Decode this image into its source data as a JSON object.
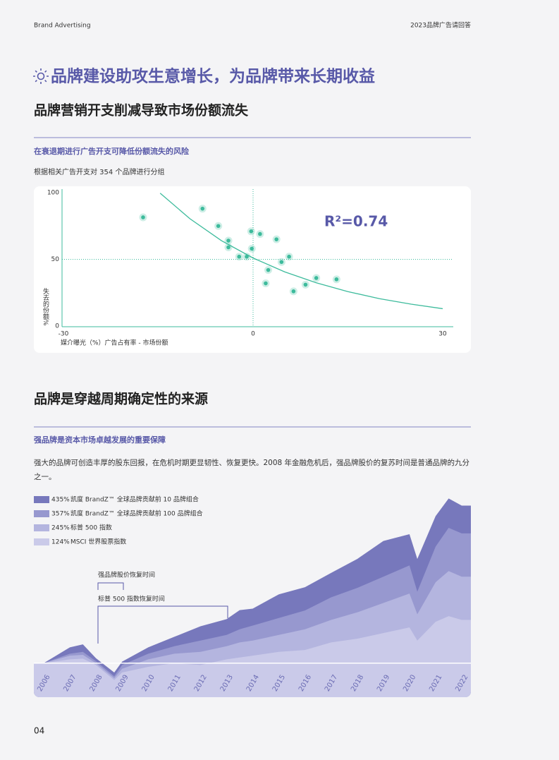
{
  "header": {
    "left": "Brand Advertising",
    "right": "2023品牌广告请回答"
  },
  "title": "品牌建设助攻生意增长，为品牌带来长期收益",
  "section1": {
    "heading": "品牌营销开支削减导致市场份额流失",
    "subheading": "在衰退期进行广告开支可降低份额流失的风险",
    "note": "根据相关广告开支对 354 个品牌进行分组"
  },
  "section2": {
    "heading": "品牌是穿越周期确定性的来源",
    "subheading": "强品牌是资本市场卓越发展的重要保障",
    "paragraph": "强大的品牌可创造丰厚的股东回报，在危机时期更显韧性、恢复更快。2008 年金融危机后，强品牌股价的复苏时间是普通品牌的九分之一。"
  },
  "page_number": "04",
  "chart_data": [
    {
      "type": "scatter",
      "x_label": "媒介曝光（%）广告占有率 - 市场份额",
      "y_label": "失去的份额%",
      "annotation": "R²=0.74",
      "color": "#3dbb9c",
      "x": [
        -17.4,
        -8,
        -5.5,
        -3.9,
        -3.9,
        -2.2,
        -1,
        -0.3,
        -0.2,
        1.1,
        2.4,
        2,
        3.7,
        4.5,
        5.7,
        6.4,
        8.3,
        10,
        13.2
      ],
      "values": [
        81.5,
        88,
        75,
        64,
        59,
        52,
        52,
        71,
        58,
        69,
        42,
        32,
        65,
        48,
        52,
        26,
        31,
        36,
        35
      ],
      "trend": {
        "x": [
          -14.7,
          -10,
          -5,
          0,
          5,
          10,
          15,
          20,
          25,
          30
        ],
        "values": [
          99.6,
          80.5,
          64,
          51,
          40.6,
          32.4,
          25.8,
          20.5,
          16.4,
          13
        ]
      },
      "xlim": [
        -30,
        30
      ],
      "xticks": [
        -30,
        0,
        30
      ],
      "ylim": [
        0,
        100
      ],
      "yticks": [
        0,
        50,
        100
      ]
    },
    {
      "type": "area",
      "annotations": [
        "强品牌股价恢复时间",
        "标普 500 指数恢复时间"
      ],
      "x": [
        2006,
        2007,
        2007.5,
        2008,
        2008.7,
        2009,
        2010,
        2011,
        2012,
        2013,
        2013.5,
        2014,
        2015,
        2016,
        2017,
        2018,
        2019,
        2020,
        2020.3,
        2021,
        2021.5,
        2022
      ],
      "series": [
        {
          "name": "凯度 BrandZ™ 全球品牌贡献前 10 品牌组合",
          "label": "435%",
          "color": "#7778bc",
          "values": [
            0,
            42,
            50,
            13,
            -25,
            4,
            42,
            70,
            98,
            117,
            141,
            145,
            183,
            202,
            240,
            277,
            325,
            343,
            277,
            391,
            438,
            419
          ]
        },
        {
          "name": "凯度 BrandZ™ 全球品牌贡献前 100 品牌组合",
          "label": "357%",
          "color": "#9798cf",
          "values": [
            0,
            25,
            30,
            5,
            -35,
            -5,
            25,
            45,
            60,
            75,
            90,
            100,
            120,
            140,
            175,
            200,
            230,
            260,
            190,
            310,
            360,
            345
          ]
        },
        {
          "name": "标普 500 指数",
          "label": "245%",
          "color": "#b4b5df",
          "values": [
            0,
            20,
            22,
            0,
            -40,
            -15,
            10,
            25,
            30,
            45,
            55,
            60,
            75,
            90,
            115,
            135,
            160,
            185,
            130,
            215,
            245,
            230
          ]
        },
        {
          "name": "MSCI 世界股票指数",
          "label": "124%",
          "color": "#cacae9",
          "values": [
            0,
            10,
            12,
            -5,
            -45,
            -25,
            -10,
            0,
            -5,
            10,
            15,
            20,
            30,
            35,
            55,
            65,
            80,
            95,
            60,
            110,
            125,
            115
          ]
        }
      ],
      "xlim": [
        2006,
        2022
      ],
      "xticks": [
        2006,
        2007,
        2008,
        2009,
        2010,
        2011,
        2012,
        2013,
        2014,
        2015,
        2016,
        2017,
        2018,
        2019,
        2020,
        2021,
        2022
      ],
      "ylim": [
        -85,
        450
      ]
    }
  ]
}
